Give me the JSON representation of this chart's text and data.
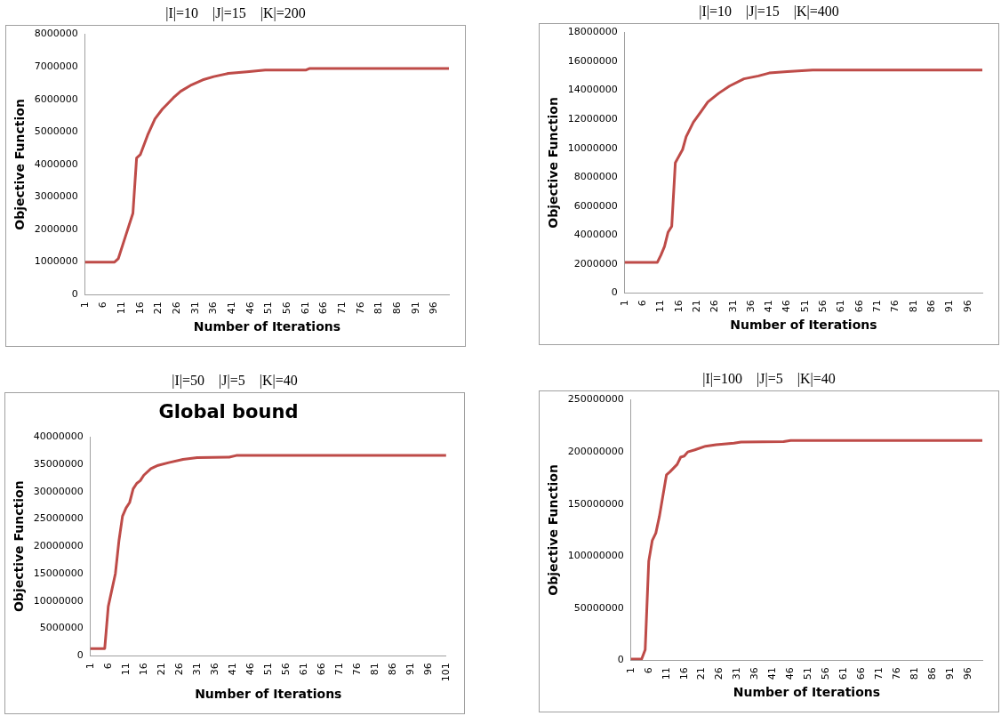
{
  "chart_data": [
    {
      "type": "line",
      "title": "|I|=10    |J|=15    |K|=200",
      "xlabel": "Number of Iterations",
      "ylabel": "Objective Function",
      "xlim": [
        1,
        100
      ],
      "xticks": [
        1,
        6,
        11,
        16,
        21,
        26,
        31,
        36,
        41,
        46,
        51,
        56,
        61,
        66,
        71,
        76,
        81,
        86,
        91,
        96
      ],
      "ylim": [
        0,
        8000000
      ],
      "yticks": [
        0,
        1000000,
        2000000,
        3000000,
        4000000,
        5000000,
        6000000,
        7000000,
        8000000
      ],
      "grid": false,
      "legend": false,
      "marker": "none",
      "line_style": "solid",
      "series": [
        {
          "color": "#be4b48",
          "x": [
            1,
            9,
            10,
            12,
            14,
            15,
            16,
            18,
            20,
            22,
            25,
            27,
            30,
            33,
            36,
            40,
            45,
            50,
            61,
            62,
            100
          ],
          "values": [
            1000000,
            1000000,
            1100000,
            1800000,
            2500000,
            4200000,
            4300000,
            4900000,
            5400000,
            5700000,
            6050000,
            6250000,
            6450000,
            6600000,
            6700000,
            6800000,
            6850000,
            6900000,
            6900000,
            6950000,
            6950000
          ]
        }
      ]
    },
    {
      "type": "line",
      "title": "|I|=10    |J|=15    |K|=400",
      "xlabel": "Number of Iterations",
      "ylabel": "Objective Function",
      "xlim": [
        1,
        100
      ],
      "xticks": [
        1,
        6,
        11,
        16,
        21,
        26,
        31,
        36,
        41,
        46,
        51,
        56,
        61,
        66,
        71,
        76,
        81,
        86,
        91,
        96
      ],
      "ylim": [
        0,
        18000000
      ],
      "yticks": [
        0,
        2000000,
        4000000,
        6000000,
        8000000,
        10000000,
        12000000,
        14000000,
        16000000,
        18000000
      ],
      "grid": false,
      "legend": false,
      "marker": "none",
      "line_style": "solid",
      "series": [
        {
          "color": "#be4b48",
          "x": [
            1,
            10,
            11,
            12,
            13,
            14,
            15,
            17,
            18,
            20,
            22,
            24,
            27,
            30,
            34,
            38,
            41,
            46,
            53,
            100
          ],
          "values": [
            2100000,
            2100000,
            2600000,
            3200000,
            4200000,
            4600000,
            9000000,
            9900000,
            10800000,
            11800000,
            12500000,
            13200000,
            13800000,
            14300000,
            14800000,
            15000000,
            15200000,
            15300000,
            15400000,
            15400000
          ]
        }
      ]
    },
    {
      "type": "line",
      "title": "|I|=50    |J|=5    |K|=40",
      "subtitle": "Global bound",
      "xlabel": "Number of Iterations",
      "ylabel": "Objective Function",
      "xlim": [
        1,
        101
      ],
      "xticks": [
        1,
        6,
        11,
        16,
        21,
        26,
        31,
        36,
        41,
        46,
        51,
        56,
        61,
        66,
        71,
        76,
        81,
        86,
        91,
        96,
        101
      ],
      "ylim": [
        0,
        40000000
      ],
      "yticks": [
        0,
        5000000,
        10000000,
        15000000,
        20000000,
        25000000,
        30000000,
        35000000,
        40000000
      ],
      "grid": false,
      "legend": false,
      "marker": "none",
      "line_style": "solid",
      "series": [
        {
          "color": "#be4b48",
          "x": [
            1,
            5,
            6,
            7,
            8,
            9,
            10,
            11,
            12,
            13,
            14,
            15,
            16,
            18,
            20,
            23,
            27,
            31,
            40,
            42,
            101
          ],
          "values": [
            1300000,
            1300000,
            9000000,
            12000000,
            15000000,
            21000000,
            25500000,
            27000000,
            28000000,
            30500000,
            31500000,
            32000000,
            33000000,
            34200000,
            34800000,
            35300000,
            35900000,
            36200000,
            36300000,
            36600000,
            36600000
          ]
        }
      ]
    },
    {
      "type": "line",
      "title": "|I|=100    |J|=5    |K|=40",
      "xlabel": "Number of Iterations",
      "ylabel": "Objective Function",
      "xlim": [
        1,
        100
      ],
      "xticks": [
        1,
        6,
        11,
        16,
        21,
        26,
        31,
        36,
        41,
        46,
        51,
        56,
        61,
        66,
        71,
        76,
        81,
        86,
        91,
        96
      ],
      "ylim": [
        0,
        250000000
      ],
      "yticks": [
        0,
        50000000,
        100000000,
        150000000,
        200000000,
        250000000
      ],
      "grid": false,
      "legend": false,
      "marker": "none",
      "line_style": "solid",
      "series": [
        {
          "color": "#be4b48",
          "x": [
            1,
            4,
            5,
            6,
            7,
            8,
            9,
            10,
            11,
            12,
            14,
            15,
            16,
            17,
            19,
            22,
            25,
            30,
            32,
            44,
            46,
            100
          ],
          "values": [
            1000000,
            1000000,
            10000000,
            95000000,
            115000000,
            122000000,
            138000000,
            158000000,
            178000000,
            181000000,
            188000000,
            195000000,
            196000000,
            200000000,
            202000000,
            205500000,
            207000000,
            208500000,
            209500000,
            210000000,
            211000000,
            211000000
          ]
        }
      ]
    }
  ]
}
